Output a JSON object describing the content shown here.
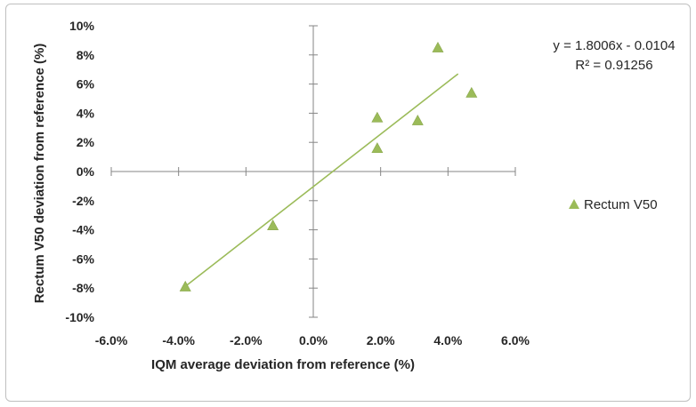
{
  "chart_data": {
    "type": "scatter",
    "xlabel": "IQM average deviation from reference (%)",
    "ylabel": "Rectum V50 deviation from reference (%)",
    "xlim": [
      -0.06,
      0.06
    ],
    "ylim": [
      -0.1,
      0.1
    ],
    "x_ticks": [
      -0.06,
      -0.04,
      -0.02,
      0.0,
      0.02,
      0.04,
      0.06
    ],
    "x_tick_labels": [
      "-6.0%",
      "-4.0%",
      "-2.0%",
      "0.0%",
      "2.0%",
      "4.0%",
      "6.0%"
    ],
    "y_ticks": [
      0.1,
      0.08,
      0.06,
      0.04,
      0.02,
      0.0,
      -0.02,
      -0.04,
      -0.06,
      -0.08,
      -0.1
    ],
    "y_tick_labels": [
      "10%",
      "8%",
      "6%",
      "4%",
      "2%",
      "0%",
      "-2%",
      "-4%",
      "-6%",
      "-8%",
      "-10%"
    ],
    "grid": false,
    "legend_position": "right",
    "series": [
      {
        "name": "Rectum V50",
        "color": "#9bbb59",
        "marker": "triangle",
        "points": [
          {
            "x": -0.038,
            "y": -0.079
          },
          {
            "x": -0.012,
            "y": -0.037
          },
          {
            "x": 0.019,
            "y": 0.016
          },
          {
            "x": 0.019,
            "y": 0.037
          },
          {
            "x": 0.031,
            "y": 0.035
          },
          {
            "x": 0.037,
            "y": 0.085
          },
          {
            "x": 0.047,
            "y": 0.054
          }
        ]
      }
    ],
    "trendline": {
      "slope": 1.8006,
      "intercept": -0.0104,
      "x_range": [
        -0.038,
        0.043
      ],
      "color": "#9bbb59",
      "equation": "y = 1.8006x - 0.0104",
      "r_squared": "R² = 0.91256"
    }
  }
}
